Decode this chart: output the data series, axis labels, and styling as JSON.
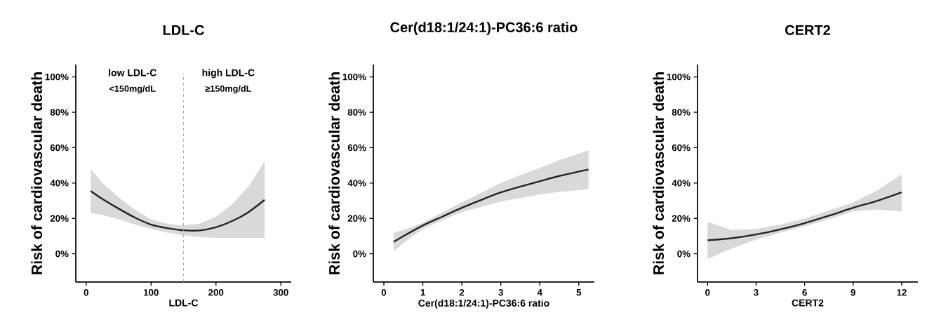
{
  "chart_data": [
    {
      "type": "line",
      "title": "LDL-C",
      "xlabel": "LDL-C",
      "ylabel": "Risk of cardiovascular death",
      "xlim": [
        -16,
        316
      ],
      "xticks": [
        0,
        100,
        200,
        300
      ],
      "ylim": [
        -16,
        107
      ],
      "yticks": [
        {
          "value": 0,
          "label": "0%"
        },
        {
          "value": 20,
          "label": "20%"
        },
        {
          "value": 40,
          "label": "40%"
        },
        {
          "value": 60,
          "label": "60%"
        },
        {
          "value": 80,
          "label": "80%"
        },
        {
          "value": 100,
          "label": "100%"
        }
      ],
      "series": [
        {
          "color": "#222222",
          "x": [
            7,
            25,
            50,
            75,
            100,
            125,
            150,
            175,
            200,
            225,
            250,
            275
          ],
          "values": [
            35.5,
            31,
            25.5,
            20.5,
            16.5,
            14.5,
            13.3,
            13.2,
            15,
            18.5,
            23.5,
            30.5
          ],
          "lower": [
            23,
            22,
            19.5,
            16.5,
            14,
            12,
            10.5,
            9.5,
            9,
            9,
            9,
            9
          ],
          "upper": [
            48,
            40,
            32,
            25,
            19.5,
            17,
            16,
            17,
            21,
            28,
            38,
            52
          ]
        }
      ],
      "ref_lines": [
        {
          "axis": "x",
          "value": 150,
          "color": "#999999",
          "line_style": "dashed"
        }
      ],
      "annotations": [
        "low LDL-C",
        "<150mg/dL",
        "high LDL-C",
        "≥150mg/dL"
      ]
    },
    {
      "type": "line",
      "title": "Cer(d18:1/24:1)-PC36:6 ratio",
      "xlabel": "Cer(d18:1/24:1)-PC36:6 ratio",
      "ylabel": "Risk of cardiovascular death",
      "xlim": [
        -0.27,
        5.4
      ],
      "xticks": [
        0,
        1,
        2,
        3,
        4,
        5
      ],
      "ylim": [
        -16,
        107
      ],
      "yticks": [
        {
          "value": 0,
          "label": "0%"
        },
        {
          "value": 20,
          "label": "20%"
        },
        {
          "value": 40,
          "label": "40%"
        },
        {
          "value": 60,
          "label": "60%"
        },
        {
          "value": 80,
          "label": "80%"
        },
        {
          "value": 100,
          "label": "100%"
        }
      ],
      "series": [
        {
          "color": "#222222",
          "x": [
            0.25,
            0.5,
            1,
            1.5,
            2,
            2.5,
            3,
            3.5,
            4,
            4.5,
            5.25
          ],
          "values": [
            6.7,
            10,
            16,
            21,
            26,
            30.5,
            34.7,
            38,
            41,
            44,
            47.6
          ],
          "lower": [
            1.5,
            6,
            14,
            19,
            23.5,
            26.5,
            29.5,
            31.5,
            33.5,
            35,
            36.5
          ],
          "upper": [
            12,
            13.5,
            17.5,
            23.5,
            29,
            34.5,
            40,
            44.5,
            48.5,
            53,
            58.5
          ]
        }
      ]
    },
    {
      "type": "line",
      "title": "CERT2",
      "xlabel": "CERT2",
      "ylabel": "Risk of cardiovascular death",
      "xlim": [
        -0.62,
        13
      ],
      "xticks": [
        0,
        3,
        6,
        9,
        12
      ],
      "ylim": [
        -16,
        107
      ],
      "yticks": [
        {
          "value": 0,
          "label": "0%"
        },
        {
          "value": 20,
          "label": "20%"
        },
        {
          "value": 40,
          "label": "40%"
        },
        {
          "value": 60,
          "label": "60%"
        },
        {
          "value": 80,
          "label": "80%"
        },
        {
          "value": 100,
          "label": "100%"
        }
      ],
      "series": [
        {
          "color": "#222222",
          "x": [
            0,
            1.5,
            3,
            4.5,
            6,
            7.5,
            9,
            10.5,
            12
          ],
          "values": [
            7.6,
            8.8,
            10.9,
            13.8,
            17.3,
            21.5,
            26,
            30,
            34.7
          ],
          "lower": [
            -3,
            3,
            8,
            12,
            15.5,
            19.5,
            24,
            25,
            24
          ],
          "upper": [
            18,
            13.5,
            14,
            16.5,
            20,
            24.5,
            29,
            36,
            45
          ]
        }
      ]
    }
  ]
}
